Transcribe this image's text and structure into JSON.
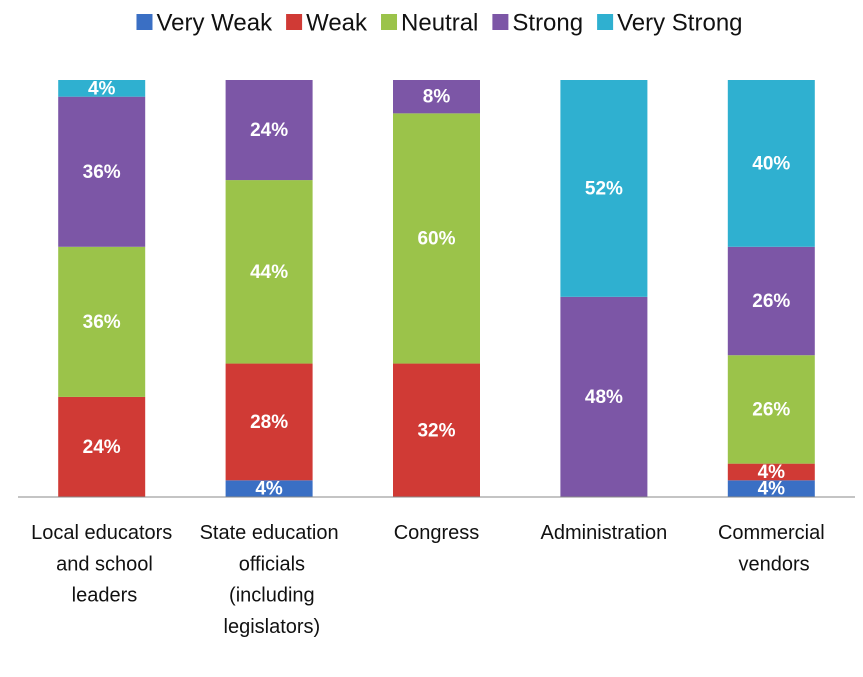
{
  "chart_data": {
    "type": "stacked_bar",
    "categories": [
      "Local educators and school leaders",
      "State education officials (including legislators)",
      "Congress",
      "Administration",
      "Commercial vendors"
    ],
    "ylim": [
      0,
      100
    ],
    "legend": "top",
    "series": [
      {
        "name": "Very Weak",
        "color": "#3a6fc4",
        "values": [
          0,
          4,
          0,
          0,
          4
        ],
        "value_labels": [
          null,
          "4%",
          null,
          null,
          "4%"
        ]
      },
      {
        "name": "Weak",
        "color": "#d03a35",
        "values": [
          24,
          28,
          32,
          0,
          4
        ],
        "value_labels": [
          "24%",
          "28%",
          "32%",
          null,
          "4%"
        ]
      },
      {
        "name": "Neutral",
        "color": "#9bc34a",
        "values": [
          36,
          44,
          60,
          0,
          26
        ],
        "value_labels": [
          "36%",
          "44%",
          "60%",
          null,
          "26%"
        ]
      },
      {
        "name": "Strong",
        "color": "#7c56a6",
        "values": [
          36,
          24,
          8,
          48,
          26
        ],
        "value_labels": [
          "36%",
          "24%",
          "8%",
          "48%",
          "26%"
        ]
      },
      {
        "name": "Very Strong",
        "color": "#2fb0d0",
        "values": [
          4,
          0,
          0,
          52,
          40
        ],
        "value_labels": [
          "4%",
          null,
          null,
          "52%",
          "40%"
        ]
      }
    ]
  }
}
